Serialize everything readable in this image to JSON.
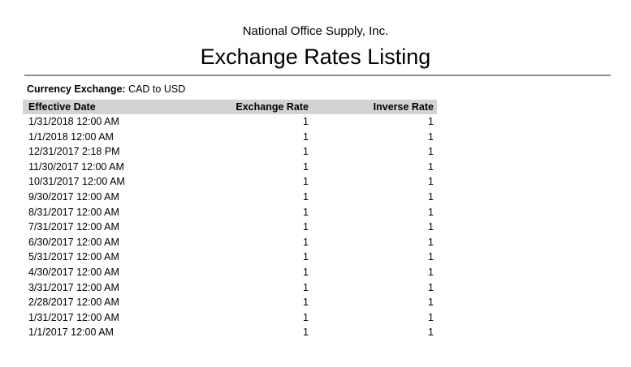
{
  "report": {
    "company": "National Office Supply, Inc.",
    "title": "Exchange Rates Listing"
  },
  "filter": {
    "label": "Currency Exchange:",
    "value": "CAD to USD"
  },
  "table": {
    "columns": [
      "Effective Date",
      "Exchange Rate",
      "Inverse Rate"
    ],
    "rows": [
      {
        "date": "1/31/2018 12:00 AM",
        "exchange_rate": "1",
        "inverse_rate": "1"
      },
      {
        "date": "1/1/2018 12:00 AM",
        "exchange_rate": "1",
        "inverse_rate": "1"
      },
      {
        "date": "12/31/2017 2:18 PM",
        "exchange_rate": "1",
        "inverse_rate": "1"
      },
      {
        "date": "11/30/2017 12:00 AM",
        "exchange_rate": "1",
        "inverse_rate": "1"
      },
      {
        "date": "10/31/2017 12:00 AM",
        "exchange_rate": "1",
        "inverse_rate": "1"
      },
      {
        "date": "9/30/2017 12:00 AM",
        "exchange_rate": "1",
        "inverse_rate": "1"
      },
      {
        "date": "8/31/2017 12:00 AM",
        "exchange_rate": "1",
        "inverse_rate": "1"
      },
      {
        "date": "7/31/2017 12:00 AM",
        "exchange_rate": "1",
        "inverse_rate": "1"
      },
      {
        "date": "6/30/2017 12:00 AM",
        "exchange_rate": "1",
        "inverse_rate": "1"
      },
      {
        "date": "5/31/2017 12:00 AM",
        "exchange_rate": "1",
        "inverse_rate": "1"
      },
      {
        "date": "4/30/2017 12:00 AM",
        "exchange_rate": "1",
        "inverse_rate": "1"
      },
      {
        "date": "3/31/2017 12:00 AM",
        "exchange_rate": "1",
        "inverse_rate": "1"
      },
      {
        "date": "2/28/2017 12:00 AM",
        "exchange_rate": "1",
        "inverse_rate": "1"
      },
      {
        "date": "1/31/2017 12:00 AM",
        "exchange_rate": "1",
        "inverse_rate": "1"
      },
      {
        "date": "1/1/2017 12:00 AM",
        "exchange_rate": "1",
        "inverse_rate": "1"
      }
    ]
  },
  "colors": {
    "text": "#000000",
    "header_bg": "#d3d3d3",
    "rule": "#8c8c8c"
  }
}
